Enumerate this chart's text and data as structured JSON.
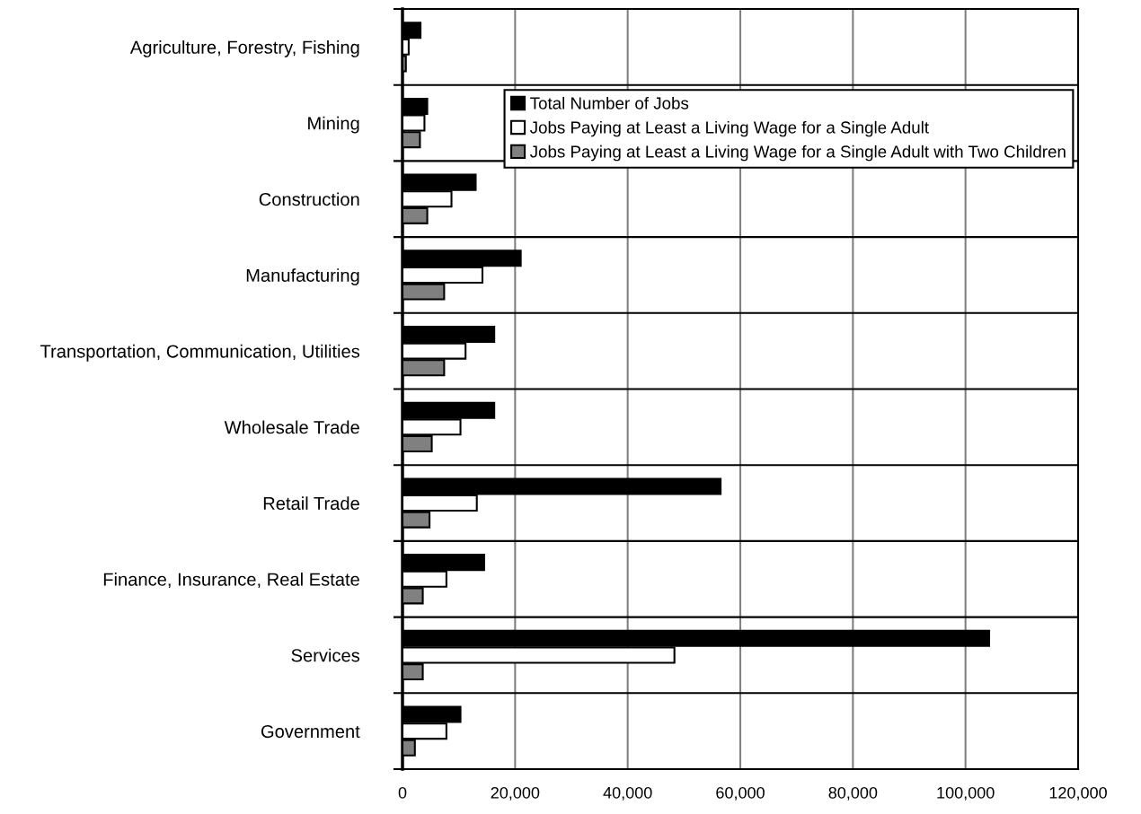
{
  "chart_data": {
    "type": "bar",
    "orientation": "horizontal",
    "categories": [
      "Agriculture, Forestry, Fishing",
      "Mining",
      "Construction",
      "Manufacturing",
      "Transportation, Communication, Utilities",
      "Wholesale Trade",
      "Retail Trade",
      "Finance, Insurance, Real Estate",
      "Services",
      "Government"
    ],
    "series": [
      {
        "name": "Total Number of Jobs",
        "color": "#000000",
        "values": [
          3200,
          4400,
          13000,
          21000,
          16300,
          16300,
          56500,
          14500,
          104200,
          10300
        ]
      },
      {
        "name": "Jobs Paying at Least a Living Wage for a Single Adult",
        "color": "#ffffff",
        "values": [
          1100,
          3900,
          8700,
          14200,
          11200,
          10300,
          13200,
          7800,
          48300,
          7800
        ]
      },
      {
        "name": "Jobs Paying at Least a Living Wage for a Single Adult with Two Children",
        "color": "#808080",
        "values": [
          600,
          3100,
          4400,
          7400,
          7400,
          5200,
          4800,
          3600,
          3600,
          2200
        ]
      }
    ],
    "xlim": [
      0,
      120000
    ],
    "xticks": [
      {
        "value": 0,
        "label": "0"
      },
      {
        "value": 20000,
        "label": "20,000"
      },
      {
        "value": 40000,
        "label": "40,000"
      },
      {
        "value": 60000,
        "label": "60,000"
      },
      {
        "value": 80000,
        "label": "80,000"
      },
      {
        "value": 100000,
        "label": "100,000"
      },
      {
        "value": 120000,
        "label": "120,000"
      }
    ],
    "grid": "x",
    "legend": "top right"
  }
}
